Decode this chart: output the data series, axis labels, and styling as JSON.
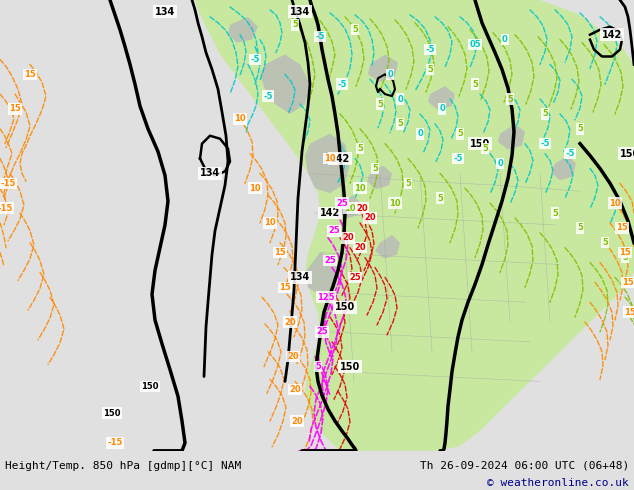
{
  "title_left": "Height/Temp. 850 hPa [gdmp][°C] NAM",
  "title_right": "Th 26-09-2024 06:00 UTC (06+48)",
  "copyright": "© weatheronline.co.uk",
  "fig_width": 6.34,
  "fig_height": 4.9,
  "dpi": 100,
  "bg_color": "#e0e0e0",
  "map_bg_color": "#e8e8e8",
  "bottom_text_color": "#000000",
  "copyright_color": "#00008b",
  "cyan_color": "#00c8c8",
  "green_color": "#80c000",
  "orange_color": "#ff8800",
  "red_color": "#e00000",
  "magenta_color": "#ff00ff",
  "black_color": "#000000",
  "land_gray": "#c8c8c8",
  "land_green_light": "#c8e8a0",
  "ocean_gray": "#d8d8d8"
}
